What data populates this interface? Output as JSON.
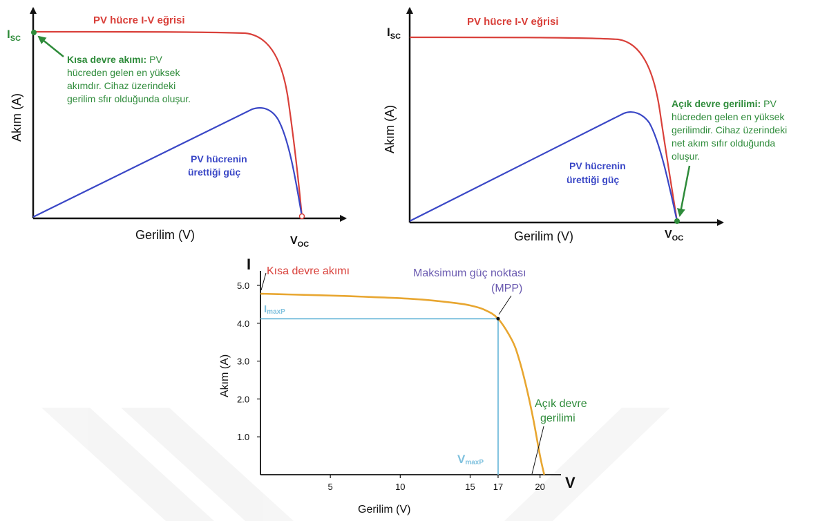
{
  "colors": {
    "red": "#d9403a",
    "blue": "#3a47c6",
    "green": "#2e8b3a",
    "orange": "#e8a630",
    "lightblue": "#7fc1de",
    "purple": "#6a5ab0",
    "black": "#111111",
    "watermark": "#f0f0f0"
  },
  "chart_data": [
    {
      "type": "line",
      "title": "PV hücre I-V eğrisi",
      "xlabel": "Gerilim (V)",
      "ylabel": "Akım (A)",
      "x_marker": "V",
      "x_marker_sub": "OC",
      "y_marker": "I",
      "y_marker_sub": "SC",
      "series": [
        {
          "name": "PV hücre I-V eğrisi",
          "color": "#d9403a"
        },
        {
          "name": "PV hücrenin üretti ği güç",
          "color": "#3a47c6"
        }
      ],
      "power_label_line1": "PV hücrenin",
      "power_label_line2": "ürettiği güç",
      "annotation": {
        "bold": "Kısa devre akımı:",
        "lines": [
          "PV",
          "hücreden gelen en yüksek",
          "akımdır. Cihaz üzerindeki",
          "gerilim sfır olduğunda oluşur."
        ]
      }
    },
    {
      "type": "line",
      "title": "PV hücre I-V eğrisi",
      "xlabel": "Gerilim (V)",
      "ylabel": "Akım (A)",
      "x_marker": "V",
      "x_marker_sub": "OC",
      "y_marker": "I",
      "y_marker_sub": "SC",
      "power_label_line1": "PV hücrenin",
      "power_label_line2": "ürettiği güç",
      "annotation": {
        "bold": "Açık devre gerilimi:",
        "lines": [
          "PV",
          "hücreden gelen en yüksek",
          "gerilimdir. Cihaz üzerindeki",
          "net akım sıfır olduğunda",
          "oluşur."
        ]
      }
    },
    {
      "type": "line",
      "xlabel": "Gerilim (V)",
      "ylabel": "Akım (A)",
      "x_axis_letter": "V",
      "y_axis_letter": "I",
      "x_ticks": [
        5,
        10,
        15,
        17,
        20
      ],
      "y_ticks": [
        "1.0",
        "2.0",
        "3.0",
        "4.0",
        "5.0"
      ],
      "xlim": [
        0,
        21.5
      ],
      "ylim": [
        0,
        5.2
      ],
      "series": [
        {
          "x": [
            0,
            2,
            4,
            6,
            8,
            10,
            12,
            14,
            15,
            16,
            17,
            18,
            18.5,
            19,
            19.5,
            20,
            20.3
          ],
          "y": [
            4.78,
            4.76,
            4.74,
            4.72,
            4.69,
            4.66,
            4.61,
            4.53,
            4.47,
            4.36,
            4.12,
            3.55,
            3.05,
            2.35,
            1.5,
            0.5,
            0
          ]
        }
      ],
      "mpp": {
        "x": 17,
        "y": 4.12
      },
      "imaxp_label": "I",
      "imaxp_sub": "maxP",
      "vmaxp_label": "V",
      "vmaxp_sub": "maxP",
      "annotations": {
        "short_circuit": "Kısa devre akımı",
        "mpp_line1": "Maksimum güç noktası",
        "mpp_line2": "(MPP)",
        "open_circuit_line1": "Açık devre",
        "open_circuit_line2": "gerilimi"
      }
    }
  ]
}
